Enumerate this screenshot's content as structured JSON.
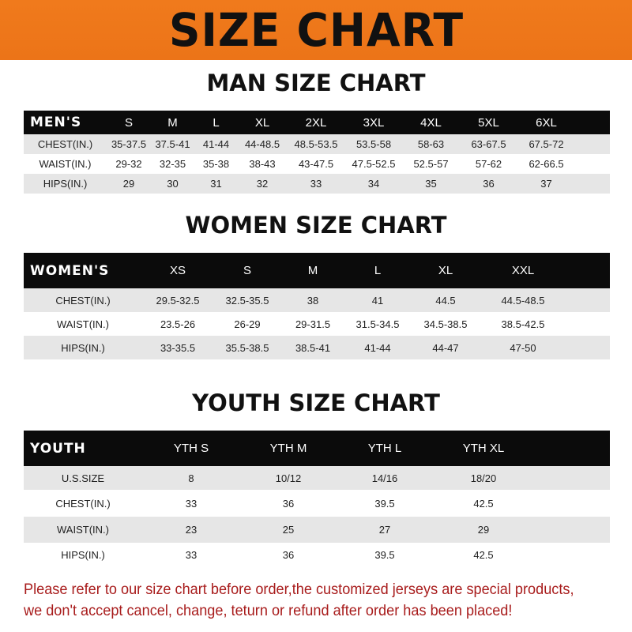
{
  "banner": {
    "title": "SIZE CHART",
    "color": "#ef7719"
  },
  "tables": [
    {
      "title": "MAN SIZE CHART",
      "header": [
        "MEN'S",
        "S",
        "M",
        "L",
        "XL",
        "2XL",
        "3XL",
        "4XL",
        "5XL",
        "6XL"
      ],
      "rows": [
        [
          "CHEST(IN.)",
          "35-37.5",
          "37.5-41",
          "41-44",
          "44-48.5",
          "48.5-53.5",
          "53.5-58",
          "58-63",
          "63-67.5",
          "67.5-72"
        ],
        [
          "WAIST(IN.)",
          "29-32",
          "32-35",
          "35-38",
          "38-43",
          "43-47.5",
          "47.5-52.5",
          "52.5-57",
          "57-62",
          "62-66.5"
        ],
        [
          "HIPS(IN.)",
          "29",
          "30",
          "31",
          "32",
          "33",
          "34",
          "35",
          "36",
          "37"
        ]
      ]
    },
    {
      "title": "WOMEN SIZE CHART",
      "header": [
        "WOMEN'S",
        "XS",
        "S",
        "M",
        "L",
        "XL",
        "XXL"
      ],
      "rows": [
        [
          "CHEST(IN.)",
          "29.5-32.5",
          "32.5-35.5",
          "38",
          "41",
          "44.5",
          "44.5-48.5"
        ],
        [
          "WAIST(IN.)",
          "23.5-26",
          "26-29",
          "29-31.5",
          "31.5-34.5",
          "34.5-38.5",
          "38.5-42.5"
        ],
        [
          "HIPS(IN.)",
          "33-35.5",
          "35.5-38.5",
          "38.5-41",
          "41-44",
          "44-47",
          "47-50"
        ]
      ]
    },
    {
      "title": "YOUTH SIZE CHART",
      "header": [
        "YOUTH",
        "YTH S",
        "YTH M",
        "YTH L",
        "YTH XL"
      ],
      "rows": [
        [
          "U.S.SIZE",
          "8",
          "10/12",
          "14/16",
          "18/20"
        ],
        [
          "CHEST(IN.)",
          "33",
          "36",
          "39.5",
          "42.5"
        ],
        [
          "WAIST(IN.)",
          "23",
          "25",
          "27",
          "29"
        ],
        [
          "HIPS(IN.)",
          "33",
          "36",
          "39.5",
          "42.5"
        ]
      ]
    }
  ],
  "notice": {
    "line1": "Please refer to our size chart before order,the customized jerseys are special products,",
    "line2": "we don't accept cancel, change, teturn or refund after order has been placed!",
    "color": "#a81c1c"
  }
}
